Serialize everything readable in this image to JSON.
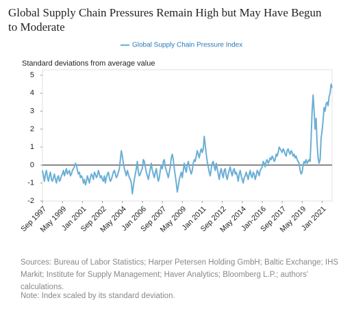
{
  "chart_data": {
    "type": "line",
    "title": "Global Supply Chain Pressures Remain High but May Have Begun to Moderate",
    "y_label": "Standard deviations from average value",
    "source": "Sources: Bureau of Labor Statistics; Harper Petersen Holding GmbH; Baltic Exchange; IHS Markit; Institute for Supply Management; Haver Analytics; Bloomberg L.P.; authors' calculations.",
    "note": "Note: Index scaled by its standard deviation.",
    "ylim": [
      -2,
      5
    ],
    "yticks": [
      -2,
      -1,
      0,
      1,
      2,
      3,
      4,
      5
    ],
    "grid": false,
    "categories": [
      "Sep 1997",
      null,
      null,
      null,
      null,
      null,
      null,
      null,
      null,
      null,
      null,
      null,
      null,
      null,
      null,
      null,
      null,
      null,
      null,
      null,
      "May 1999",
      null,
      null,
      null,
      null,
      null,
      null,
      null,
      null,
      null,
      null,
      null,
      null,
      null,
      null,
      null,
      null,
      null,
      null,
      null,
      "Jan 2001",
      null,
      null,
      null,
      null,
      null,
      null,
      null,
      null,
      null,
      null,
      null,
      null,
      null,
      null,
      null,
      null,
      null,
      null,
      null,
      "Sep 2002",
      null,
      null,
      null,
      null,
      null,
      null,
      null,
      null,
      null,
      null,
      null,
      null,
      null,
      null,
      null,
      null,
      null,
      null,
      null,
      "May 2004",
      null,
      null,
      null,
      null,
      null,
      null,
      null,
      null,
      null,
      null,
      null,
      null,
      null,
      null,
      null,
      null,
      null,
      null,
      null,
      "Jan 2006",
      null,
      null,
      null,
      null,
      null,
      null,
      null,
      null,
      null,
      null,
      null,
      null,
      null,
      null,
      null,
      null,
      null,
      null,
      null,
      "Sep 2007",
      null,
      null,
      null,
      null,
      null,
      null,
      null,
      null,
      null,
      null,
      null,
      null,
      null,
      null,
      null,
      null,
      null,
      null,
      null,
      "May 2009",
      null,
      null,
      null,
      null,
      null,
      null,
      null,
      null,
      null,
      null,
      null,
      null,
      null,
      null,
      null,
      null,
      null,
      null,
      null,
      "Jan 2011",
      null,
      null,
      null,
      null,
      null,
      null,
      null,
      null,
      null,
      null,
      null,
      null,
      null,
      null,
      null,
      null,
      null,
      null,
      null,
      "Sep 2012",
      null,
      null,
      null,
      null,
      null,
      null,
      null,
      null,
      null,
      null,
      null,
      null,
      null,
      null,
      null,
      null,
      null,
      null,
      null,
      "May 2014",
      null,
      null,
      null,
      null,
      null,
      null,
      null,
      null,
      null,
      null,
      null,
      null,
      null,
      null,
      null,
      null,
      null,
      null,
      null,
      "Jan-2016",
      null,
      null,
      null,
      null,
      null,
      null,
      null,
      null,
      null,
      null,
      null,
      null,
      null,
      null,
      null,
      null,
      null,
      null,
      null,
      "Sep 2017",
      null,
      null,
      null,
      null,
      null,
      null,
      null,
      null,
      null,
      null,
      null,
      null,
      null,
      null,
      null,
      null,
      null,
      null,
      null,
      "May 2019",
      null,
      null,
      null,
      null,
      null,
      null,
      null,
      null,
      null,
      null,
      null,
      null,
      null,
      null,
      null,
      null,
      null,
      null,
      null,
      "Jan 2021",
      null,
      null,
      null,
      null,
      null,
      null,
      null,
      null,
      null,
      null
    ],
    "series": [
      {
        "name": "Global Supply Chain Pressure Index",
        "color": "#6aaed6",
        "values": [
          -0.3,
          -0.6,
          -0.9,
          -0.5,
          -0.3,
          -0.7,
          -0.9,
          -0.6,
          -0.4,
          -0.8,
          -0.9,
          -0.7,
          -0.5,
          -0.8,
          -1.0,
          -0.7,
          -0.6,
          -0.9,
          -0.8,
          -0.6,
          -0.5,
          -0.3,
          -0.6,
          -0.4,
          -0.2,
          -0.5,
          -0.4,
          -0.3,
          -0.6,
          -0.5,
          -0.3,
          -0.2,
          -0.1,
          0.1,
          0.0,
          -0.3,
          -0.5,
          -0.4,
          -0.7,
          -0.6,
          -0.7,
          -1.0,
          -0.8,
          -1.1,
          -0.9,
          -0.6,
          -0.8,
          -1.0,
          -0.7,
          -0.5,
          -0.6,
          -0.8,
          -0.4,
          -0.5,
          -0.7,
          -0.6,
          -0.3,
          -0.5,
          -0.7,
          -0.6,
          -0.8,
          -0.9,
          -0.6,
          -1.0,
          -0.7,
          -0.5,
          -0.4,
          -0.7,
          -0.9,
          -0.8,
          -0.6,
          -0.4,
          -0.3,
          -0.5,
          -0.7,
          -0.6,
          -0.4,
          -0.2,
          0.3,
          0.8,
          0.5,
          0.1,
          -0.2,
          -0.4,
          -0.6,
          -0.3,
          -0.5,
          -0.7,
          -0.8,
          -1.0,
          -1.6,
          -1.2,
          -0.8,
          -0.5,
          -0.2,
          0.2,
          -0.4,
          -0.6,
          -0.5,
          -0.3,
          -0.2,
          0.3,
          0.2,
          -0.1,
          -0.4,
          -0.6,
          -0.8,
          -0.5,
          -0.2,
          0.1,
          -0.3,
          -0.5,
          -0.7,
          -0.4,
          -0.2,
          -0.6,
          -0.9,
          -0.7,
          -0.3,
          0.0,
          -0.2,
          0.2,
          0.3,
          -0.1,
          -0.3,
          -0.5,
          -0.7,
          -0.4,
          -0.1,
          0.4,
          0.6,
          0.3,
          -0.2,
          -0.6,
          -1.0,
          -1.5,
          -1.2,
          -0.8,
          -0.6,
          -0.4,
          -0.7,
          -0.3,
          0.1,
          -0.2,
          -0.4,
          0.0,
          0.2,
          -0.1,
          -0.3,
          -0.5,
          -0.3,
          0.1,
          0.3,
          0.2,
          0.5,
          0.8,
          0.6,
          0.4,
          0.7,
          0.9,
          0.7,
          0.9,
          1.6,
          1.1,
          0.6,
          0.2,
          -0.1,
          -0.4,
          -0.6,
          -0.2,
          0.1,
          0.2,
          -0.1,
          -0.3,
          0.1,
          -0.2,
          -0.5,
          -0.8,
          -0.4,
          -0.2,
          -0.5,
          -0.7,
          -0.3,
          -0.2,
          -0.6,
          -0.8,
          -0.5,
          -0.3,
          -0.1,
          -0.4,
          -0.6,
          -0.3,
          -0.2,
          -0.5,
          -0.4,
          -0.6,
          -0.9,
          -0.5,
          -0.3,
          -0.6,
          -0.8,
          -1.0,
          -0.7,
          -0.6,
          -0.4,
          -0.6,
          -0.8,
          -0.5,
          -0.3,
          -0.6,
          -0.7,
          -0.4,
          -0.5,
          -0.8,
          -0.6,
          -0.3,
          -0.4,
          -0.6,
          -0.3,
          -0.2,
          -0.1,
          0.2,
          0.1,
          -0.1,
          0.2,
          0.3,
          0.1,
          0.2,
          0.4,
          0.3,
          0.5,
          0.4,
          0.2,
          0.3,
          0.6,
          0.5,
          0.7,
          1.0,
          0.9,
          0.8,
          0.7,
          0.9,
          0.8,
          0.6,
          0.5,
          0.8,
          0.9,
          0.7,
          0.6,
          0.8,
          0.7,
          0.5,
          0.6,
          0.4,
          0.5,
          0.3,
          0.2,
          0.1,
          -0.3,
          -0.5,
          -0.4,
          0.0,
          0.2,
          0.1,
          0.3,
          0.1,
          0.2,
          0.3,
          0.2,
          1.5,
          3.0,
          3.9,
          3.0,
          2.0,
          2.6,
          1.2,
          0.4,
          0.1,
          0.3,
          1.5,
          1.9,
          2.5,
          3.2,
          3.0,
          3.4,
          3.5,
          3.3,
          3.8,
          4.0,
          4.5,
          4.3
        ]
      }
    ]
  }
}
